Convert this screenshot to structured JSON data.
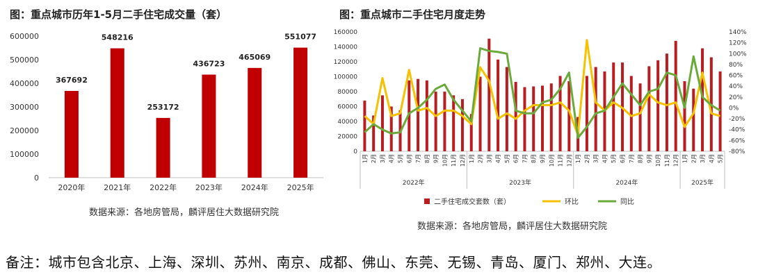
{
  "chart_data": [
    {
      "type": "bar",
      "title": "图：重点城市历年1-5月二手住宅成交量（套）",
      "categories": [
        "2020年",
        "2021年",
        "2022年",
        "2023年",
        "2024年",
        "2025年"
      ],
      "values": [
        367692,
        548216,
        253172,
        436723,
        465069,
        551077
      ],
      "data_labels": [
        "367692",
        "548216",
        "253172",
        "436723",
        "465069",
        "551077"
      ],
      "ylim": [
        0,
        600000
      ],
      "yticks": [
        "0",
        "100000",
        "200000",
        "300000",
        "400000",
        "500000",
        "600000"
      ],
      "grid": false,
      "legend": "none",
      "source": "数据来源：各地房管局，麟评居住大数据研究院"
    },
    {
      "type": "bar+line",
      "title": "图：重点城市二手住宅月度走势",
      "months": [
        "1月",
        "2月",
        "3月",
        "4月",
        "5月",
        "6月",
        "7月",
        "8月",
        "9月",
        "10月",
        "11月",
        "12月",
        "1月",
        "2月",
        "3月",
        "4月",
        "5月",
        "6月",
        "7月",
        "8月",
        "9月",
        "10月",
        "11月",
        "12月",
        "1月",
        "2月",
        "3月",
        "4月",
        "5月",
        "6月",
        "7月",
        "8月",
        "9月",
        "10月",
        "11月",
        "12月",
        "1月",
        "2月",
        "3月",
        "4月",
        "5月"
      ],
      "years": [
        {
          "label": "2022年",
          "count": 12
        },
        {
          "label": "2023年",
          "count": 12
        },
        {
          "label": "2024年",
          "count": 12
        },
        {
          "label": "2025年",
          "count": 5
        }
      ],
      "y_left": {
        "ylim": [
          0,
          160000
        ],
        "ticks": [
          "0",
          "20000",
          "40000",
          "60000",
          "80000",
          "100000",
          "120000",
          "140000",
          "160000"
        ]
      },
      "y_right": {
        "ylim": [
          -80,
          140
        ],
        "ticks": [
          "-80%",
          "-60%",
          "-40%",
          "-20%",
          "0%",
          "20%",
          "40%",
          "60%",
          "80%",
          "100%",
          "120%",
          "140%"
        ]
      },
      "series": [
        {
          "name": "二手住宅成交套数（套）",
          "type": "bar",
          "axis": "left",
          "color": "#b81d22",
          "values": [
            68000,
            48000,
            75000,
            60000,
            55000,
            95000,
            97000,
            95000,
            80000,
            80000,
            75000,
            70000,
            50000,
            100000,
            151000,
            123000,
            113000,
            93000,
            86000,
            87000,
            88000,
            91000,
            101000,
            94000,
            46000,
            101000,
            113000,
            107000,
            119000,
            119000,
            101000,
            91000,
            114000,
            122000,
            131000,
            148000,
            94000,
            84000,
            138000,
            126000,
            107000
          ]
        },
        {
          "name": "环比",
          "type": "line",
          "axis": "right",
          "color": "#f5c100",
          "values": [
            -15,
            -30,
            55,
            -15,
            -10,
            70,
            -5,
            0,
            -15,
            -5,
            -5,
            -15,
            -30,
            75,
            50,
            -20,
            -10,
            -20,
            -5,
            5,
            5,
            5,
            10,
            -5,
            -50,
            125,
            10,
            -5,
            10,
            0,
            -15,
            -10,
            25,
            10,
            5,
            10,
            -35,
            -10,
            65,
            -10,
            -15
          ]
        },
        {
          "name": "同比",
          "type": "line",
          "axis": "right",
          "color": "#6aaa3a",
          "values": [
            -45,
            -30,
            -40,
            -47,
            -45,
            -10,
            0,
            15,
            35,
            43,
            15,
            -5,
            -25,
            110,
            105,
            103,
            100,
            -5,
            -10,
            -10,
            10,
            15,
            35,
            65,
            -55,
            -35,
            -10,
            -5,
            20,
            45,
            25,
            5,
            30,
            35,
            65,
            60,
            0,
            95,
            20,
            5,
            -5
          ]
        }
      ],
      "legend": "bottom",
      "source": "数据来源：各地房管局，麟评居住大数据研究院"
    }
  ],
  "footnote": "备注：城市包含北京、上海、深圳、苏州、南京、成都、佛山、东莞、无锡、青岛、厦门、郑州、大连。"
}
